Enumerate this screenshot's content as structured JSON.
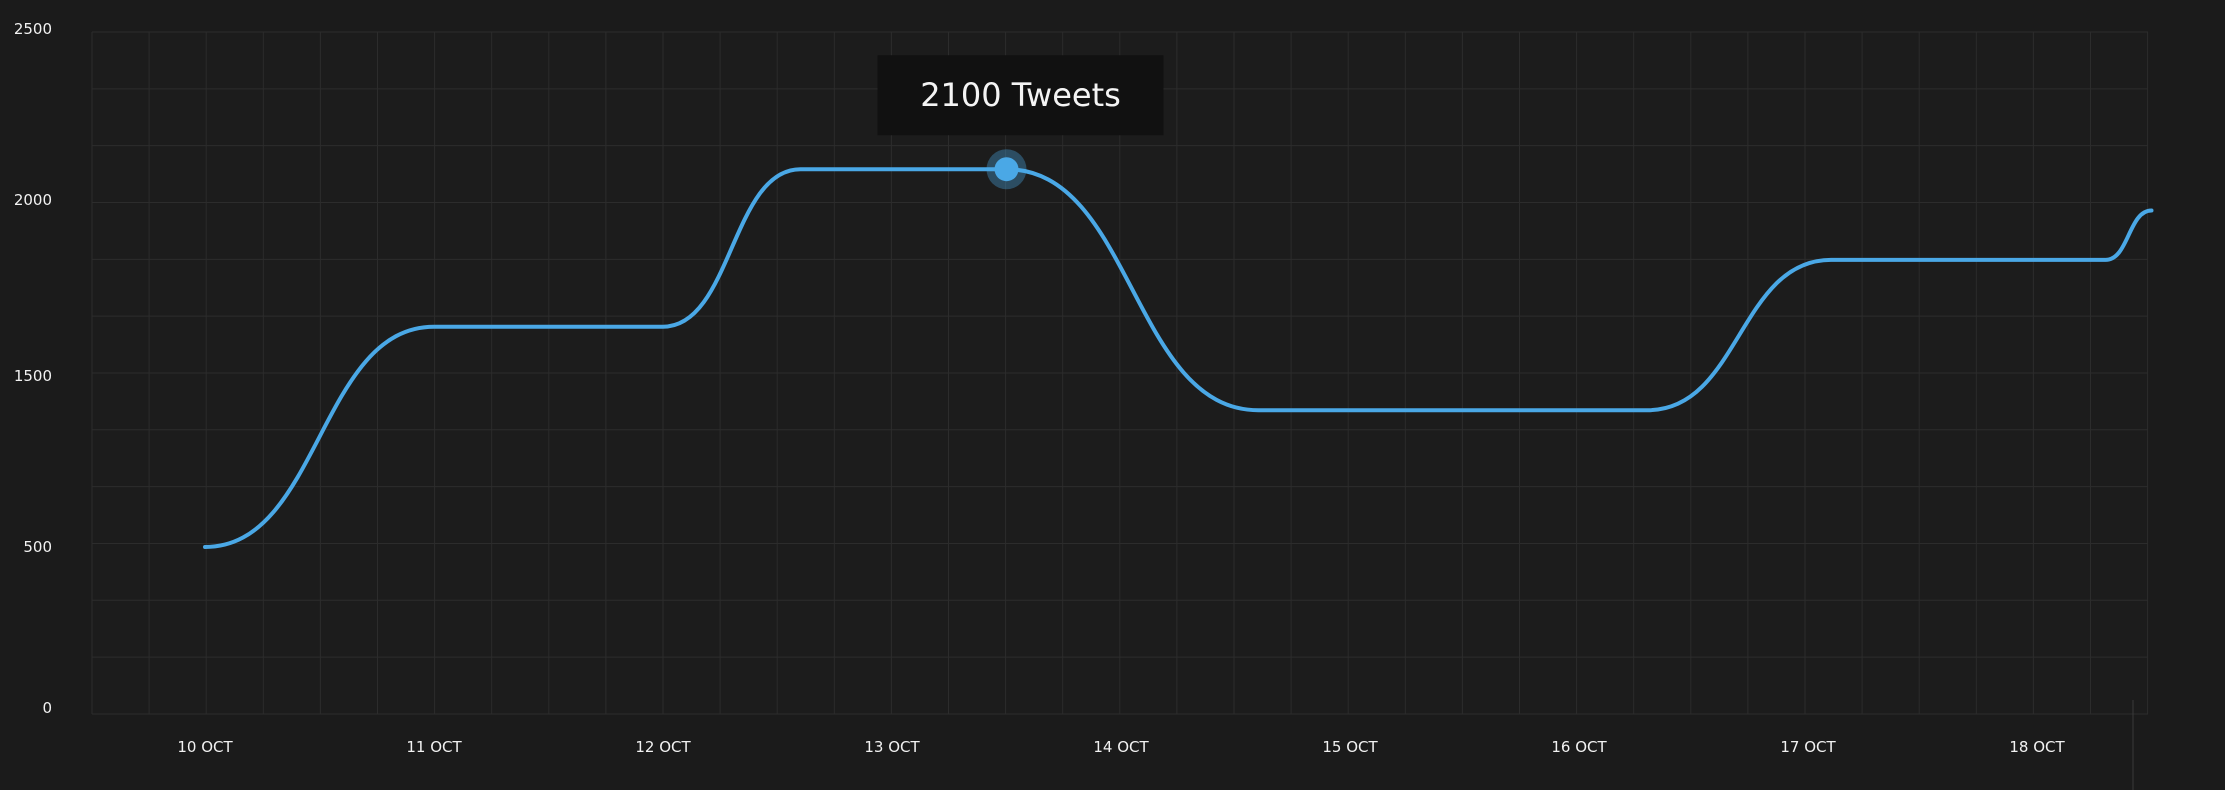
{
  "chart_data": {
    "type": "line",
    "title": "",
    "xlabel": "",
    "ylabel": "",
    "x_tick_labels": [
      "10 OCT",
      "11 OCT",
      "12 OCT",
      "13 OCT",
      "14 OCT",
      "15 OCT",
      "16 OCT",
      "17 OCT",
      "18 OCT"
    ],
    "y_tick_labels": [
      "0",
      "500",
      "1500",
      "2000",
      "2500"
    ],
    "series": [
      {
        "color": "#4aa8e6",
        "points": [
          {
            "x": "10 OCT",
            "y": 500
          },
          {
            "x": "11 OCT",
            "y": 1640
          },
          {
            "x": "12 OCT",
            "y": 1640
          },
          {
            "x": "12.6 OCT",
            "y": 2090
          },
          {
            "x": "13.5 OCT",
            "y": 2090
          },
          {
            "x": "14.6 OCT",
            "y": 1300
          },
          {
            "x": "16.3 OCT",
            "y": 1300
          },
          {
            "x": "17.1 OCT",
            "y": 1830
          },
          {
            "x": "18.3 OCT",
            "y": 1830
          },
          {
            "x": "18.5 OCT",
            "y": 1970
          }
        ]
      }
    ],
    "highlight": {
      "point_index": 4,
      "label": "2100 Tweets"
    },
    "grid": true,
    "line_color": "#4aa8e6"
  }
}
